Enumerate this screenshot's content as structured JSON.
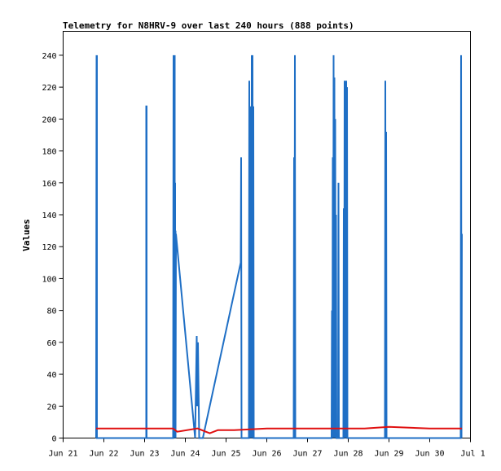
{
  "chart_data": {
    "type": "line",
    "title": "Telemetry for N8HRV-9 over last 240 hours (888 points)",
    "xlabel": "",
    "ylabel": "Values",
    "x_ticks": [
      "Jun 21",
      "Jun 22",
      "Jun 23",
      "Jun 24",
      "Jun 25",
      "Jun 26",
      "Jun 27",
      "Jun 28",
      "Jun 29",
      "Jun 30",
      "Jul 1"
    ],
    "xlim": [
      0,
      10
    ],
    "ylim": [
      0,
      255
    ],
    "y_ticks": [
      0,
      20,
      40,
      60,
      80,
      100,
      120,
      140,
      160,
      180,
      200,
      220,
      240
    ],
    "grid": false,
    "legend": "none",
    "series": [
      {
        "color": "#1f6fc5",
        "x": [
          0.81,
          0.82,
          0.82,
          0.83,
          0.83,
          2.04,
          2.04,
          2.05,
          2.05,
          2.7,
          2.71,
          2.71,
          2.72,
          2.72,
          2.73,
          2.73,
          2.74,
          2.74,
          2.75,
          2.75,
          2.76,
          2.76,
          2.77,
          3.24,
          3.28,
          3.29,
          3.31,
          3.34,
          3.43,
          4.36,
          4.37,
          4.38,
          4.56,
          4.57,
          4.58,
          4.59,
          4.6,
          4.61,
          4.62,
          4.63,
          4.64,
          4.65,
          4.66,
          4.67,
          4.68,
          4.69,
          4.7,
          5.66,
          5.67,
          5.68,
          5.69,
          5.7,
          6.58,
          6.59,
          6.6,
          6.61,
          6.62,
          6.63,
          6.64,
          6.65,
          6.66,
          6.67,
          6.68,
          6.69,
          6.7,
          6.71,
          6.72,
          6.73,
          6.74,
          6.75,
          6.76,
          6.77,
          6.88,
          6.89,
          6.9,
          6.91,
          6.92,
          6.93,
          6.94,
          6.95,
          6.96,
          6.97,
          6.98,
          6.99,
          7.0,
          7.01,
          7.02,
          7.03,
          7.9,
          7.91,
          7.92,
          7.93,
          7.94,
          7.95,
          9.76,
          9.77,
          9.78,
          9.79
        ],
        "y": [
          0,
          240,
          0,
          240,
          0,
          0,
          208,
          208,
          0,
          0,
          240,
          0,
          240,
          0,
          240,
          0,
          240,
          0,
          160,
          0,
          130,
          0,
          128,
          0,
          64,
          20,
          60,
          0,
          0,
          110,
          176,
          0,
          0,
          224,
          0,
          208,
          0,
          112,
          0,
          240,
          0,
          240,
          0,
          208,
          0,
          0,
          0,
          0,
          176,
          0,
          240,
          0,
          0,
          0,
          80,
          0,
          176,
          0,
          240,
          0,
          226,
          0,
          200,
          0,
          140,
          0,
          0,
          0,
          0,
          0,
          160,
          0,
          0,
          144,
          0,
          224,
          0,
          224,
          0,
          224,
          0,
          220,
          0,
          0,
          0,
          0,
          0,
          0,
          0,
          224,
          0,
          192,
          0,
          0,
          0,
          240,
          0,
          128
        ]
      },
      {
        "color": "#e01010",
        "x": [
          0.81,
          2.7,
          2.8,
          3.3,
          3.6,
          3.8,
          4.2,
          5.0,
          6.0,
          6.9,
          7.4,
          8.0,
          9.0,
          9.79
        ],
        "y": [
          6,
          6,
          4,
          6,
          3,
          5,
          5,
          6,
          6,
          6,
          6,
          7,
          6,
          6
        ]
      }
    ]
  }
}
